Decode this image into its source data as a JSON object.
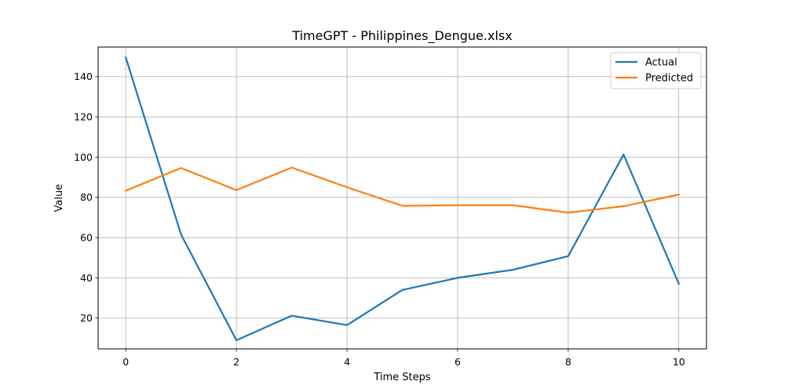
{
  "chart_data": {
    "type": "line",
    "title": "TimeGPT - Philippines_Dengue.xlsx",
    "xlabel": "Time Steps",
    "ylabel": "Value",
    "x": [
      0,
      1,
      2,
      3,
      4,
      5,
      6,
      7,
      8,
      9,
      10
    ],
    "xlim": [
      -0.5,
      10.5
    ],
    "ylim": [
      4.7,
      154.7
    ],
    "xticks": [
      0,
      2,
      4,
      6,
      8,
      10
    ],
    "yticks": [
      20,
      40,
      60,
      80,
      100,
      120,
      140
    ],
    "grid": true,
    "legend_position": "top-right",
    "series": [
      {
        "name": "Actual",
        "color": "#1f77b4",
        "values": [
          149.5,
          61.5,
          9.0,
          21.2,
          16.5,
          34.0,
          40.0,
          44.0,
          50.8,
          101.3,
          37.0
        ]
      },
      {
        "name": "Predicted",
        "color": "#ff7f0e",
        "values": [
          83.3,
          94.6,
          83.6,
          94.8,
          85.0,
          75.8,
          76.1,
          76.1,
          72.4,
          75.6,
          81.4
        ]
      }
    ]
  }
}
